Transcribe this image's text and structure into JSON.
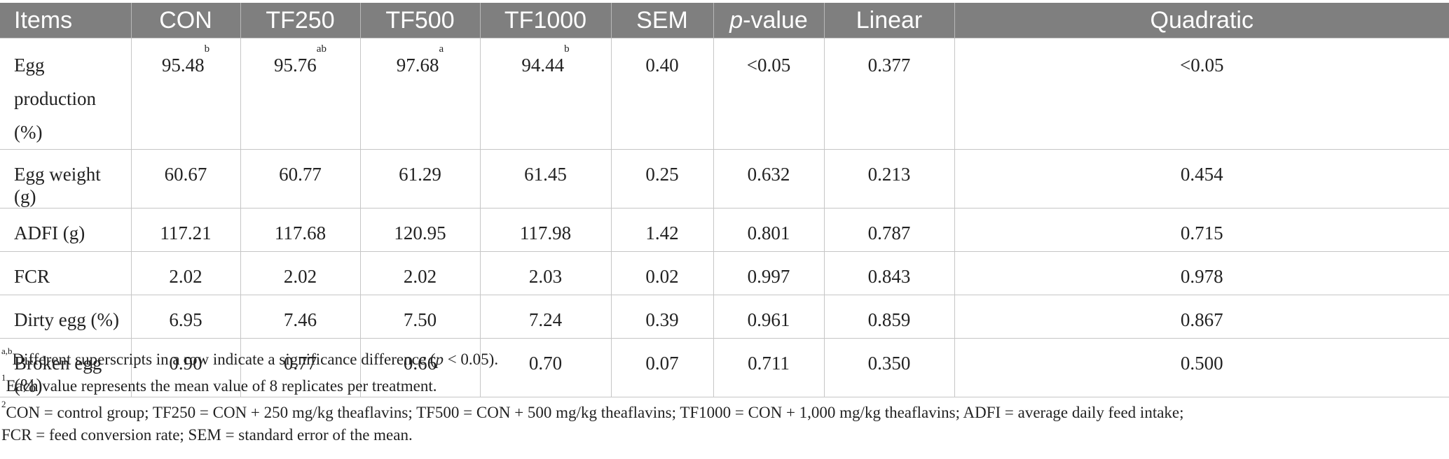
{
  "table": {
    "headers": [
      "Items",
      "CON",
      "TF250",
      "TF500",
      "TF1000",
      "SEM",
      "p",
      "-value",
      "Linear",
      "Quadratic"
    ],
    "rows": [
      {
        "item": "Egg production (%)",
        "con": "95.48",
        "con_sup": "b",
        "tf250": "95.76",
        "tf250_sup": "ab",
        "tf500": "97.68",
        "tf500_sup": "a",
        "tf1000": "94.44",
        "tf1000_sup": "b",
        "sem": "0.40",
        "p": "<0.05",
        "linear": "0.377",
        "quadratic": "<0.05"
      },
      {
        "item": "Egg weight (g)",
        "con": "60.67",
        "tf250": "60.77",
        "tf500": "61.29",
        "tf1000": "61.45",
        "sem": "0.25",
        "p": "0.632",
        "linear": "0.213",
        "quadratic": "0.454"
      },
      {
        "item": "ADFI (g)",
        "con": "117.21",
        "tf250": "117.68",
        "tf500": "120.95",
        "tf1000": "117.98",
        "sem": "1.42",
        "p": "0.801",
        "linear": "0.787",
        "quadratic": "0.715"
      },
      {
        "item": "FCR",
        "con": "2.02",
        "tf250": "2.02",
        "tf500": "2.02",
        "tf1000": "2.03",
        "sem": "0.02",
        "p": "0.997",
        "linear": "0.843",
        "quadratic": "0.978"
      },
      {
        "item": "Dirty egg (%)",
        "con": "6.95",
        "tf250": "7.46",
        "tf500": "7.50",
        "tf1000": "7.24",
        "sem": "0.39",
        "p": "0.961",
        "linear": "0.859",
        "quadratic": "0.867"
      },
      {
        "item": "Broken egg (%)",
        "con": "0.90",
        "tf250": "0.77",
        "tf500": "0.66",
        "tf1000": "0.70",
        "sem": "0.07",
        "p": "0.711",
        "linear": "0.350",
        "quadratic": "0.500"
      }
    ]
  },
  "footnotes": {
    "n1_sup": "a,b",
    "n1_text_a": "Different superscripts in a row indicate a significance difference (",
    "n1_italic": "p",
    "n1_text_b": " < 0.05).",
    "n2_sup": "1",
    "n2_text": "Each value represents the mean value of 8 replicates per treatment.",
    "n3_sup": "2",
    "n3_line1": "CON = control group; TF250 = CON + 250 mg/kg theaflavins; TF500 = CON + 500 mg/kg theaflavins; TF1000 = CON + 1,000 mg/kg theaflavins; ADFI = average daily feed intake;",
    "n3_line2": "FCR = feed conversion rate; SEM = standard error of the mean."
  }
}
